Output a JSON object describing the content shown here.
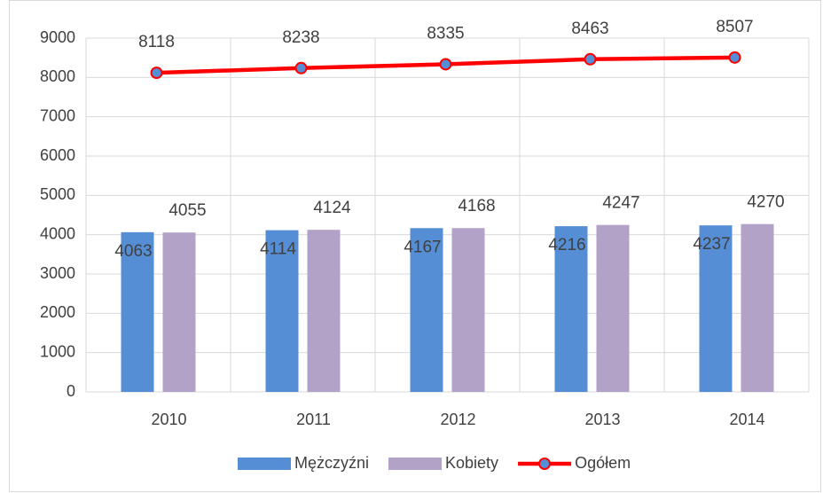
{
  "chart_data": {
    "type": "bar-line",
    "categories": [
      "2010",
      "2011",
      "2012",
      "2013",
      "2014"
    ],
    "series": [
      {
        "name": "Mężczyźni",
        "type": "bar",
        "color": "#558ed5",
        "values": [
          4063,
          4114,
          4167,
          4216,
          4237
        ]
      },
      {
        "name": "Kobiety",
        "type": "bar",
        "color": "#b3a2c7",
        "values": [
          4055,
          4124,
          4168,
          4247,
          4270
        ]
      },
      {
        "name": "Ogółem",
        "type": "line",
        "color": "#ff0000",
        "marker_color": "#558ed5",
        "values": [
          8118,
          8238,
          8335,
          8463,
          8507
        ]
      }
    ],
    "ylim": [
      0,
      9000
    ],
    "yticks": [
      0,
      1000,
      2000,
      3000,
      4000,
      5000,
      6000,
      7000,
      8000,
      9000
    ],
    "grid": true,
    "legend": "bottom"
  }
}
